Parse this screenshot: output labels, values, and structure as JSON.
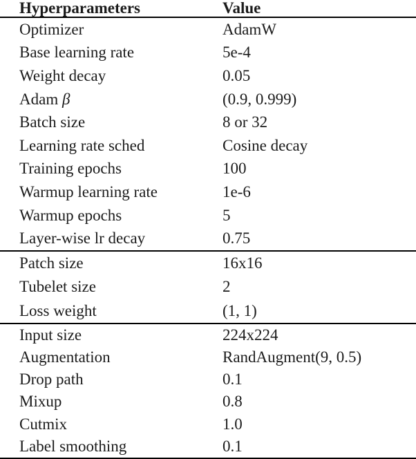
{
  "page": {
    "background": "#ffffff",
    "text_color": "#1b1b1b",
    "rule_color": "#000000"
  },
  "table": {
    "columns": [
      "Hyperparameters",
      "Value"
    ],
    "sections": [
      {
        "rows": [
          {
            "param": "Optimizer",
            "value": "AdamW"
          },
          {
            "param": "Base learning rate",
            "value": "5e-4"
          },
          {
            "param": "Weight decay",
            "value": "0.05"
          },
          {
            "param": "Adam ",
            "math": "β",
            "value": "(0.9, 0.999)"
          },
          {
            "param": "Batch size",
            "value": "8 or 32"
          },
          {
            "param": "Learning rate sched",
            "value": "Cosine decay"
          },
          {
            "param": "Training epochs",
            "value": "100"
          },
          {
            "param": "Warmup learning rate",
            "value": "1e-6"
          },
          {
            "param": "Warmup epochs",
            "value": "5"
          },
          {
            "param": "Layer-wise lr decay",
            "value": "0.75"
          }
        ]
      },
      {
        "rows": [
          {
            "param": "Patch size",
            "value": "16x16"
          },
          {
            "param": "Tubelet size",
            "value": "2"
          },
          {
            "param": "Loss weight",
            "value": "(1, 1)"
          }
        ]
      },
      {
        "rows": [
          {
            "param": "Input size",
            "value": "224x224"
          },
          {
            "param": "Augmentation",
            "value": "RandAugment(9, 0.5)"
          },
          {
            "param": "Drop path",
            "value": "0.1"
          },
          {
            "param": "Mixup",
            "value": "0.8"
          },
          {
            "param": "Cutmix",
            "value": "1.0"
          },
          {
            "param": "Label smoothing",
            "value": "0.1"
          }
        ]
      }
    ]
  }
}
